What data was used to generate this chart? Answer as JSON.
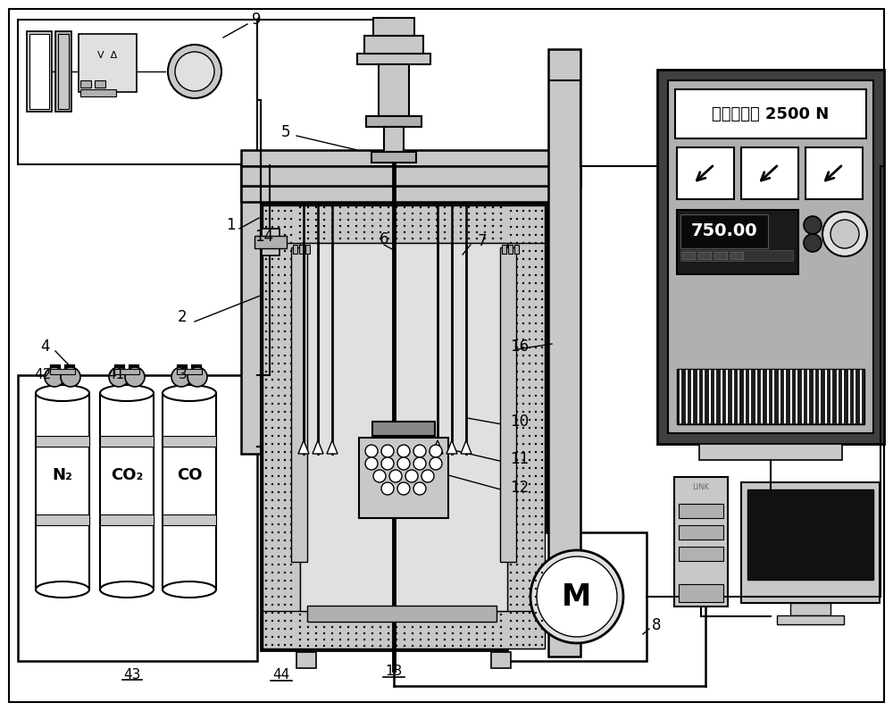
{
  "bg_color": "#ffffff",
  "display_text": "抗压强度： 2500 N",
  "display_digits": "750.00",
  "gas_labels": [
    "N₂",
    "CO₂",
    "CO"
  ],
  "motor_label": "M",
  "figsize": [
    10.0,
    7.96
  ],
  "dpi": 100,
  "gray1": "#e0e0e0",
  "gray2": "#c8c8c8",
  "gray3": "#b0b0b0",
  "gray4": "#888888",
  "gray5": "#404040",
  "dark": "#1a1a1a",
  "white": "#ffffff",
  "black": "#000000"
}
